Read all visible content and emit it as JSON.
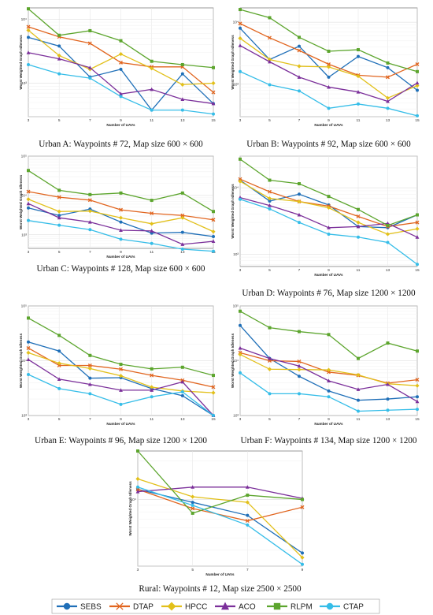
{
  "series_styles": [
    {
      "name": "SEBS",
      "color": "#1f6fb8",
      "marker": "circle"
    },
    {
      "name": "DTAP",
      "color": "#e1651f",
      "marker": "x"
    },
    {
      "name": "HPCC",
      "color": "#e2c01a",
      "marker": "diamond"
    },
    {
      "name": "ACO",
      "color": "#7b2f9a",
      "marker": "triangle"
    },
    {
      "name": "RLPM",
      "color": "#5ca52d",
      "marker": "square"
    },
    {
      "name": "CTAP",
      "color": "#35bde8",
      "marker": "circle"
    }
  ],
  "chart_data": [
    {
      "type": "line",
      "caption": "Urban A: Waypoints # 72, Map size 600 × 600",
      "xlabel": "Number of UAVs",
      "ylabel": "Worst Weighted Graph Idleness",
      "yscale": "log",
      "ylim": [
        300,
        15000
      ],
      "yticks": [
        {
          "v": 1000,
          "t": "10³"
        },
        {
          "v": 10000,
          "t": "10⁴"
        }
      ],
      "x": [
        3,
        5,
        7,
        9,
        11,
        13,
        15
      ],
      "series": [
        {
          "name": "SEBS",
          "values": [
            5200,
            3800,
            1250,
            1650,
            380,
            1400,
            480
          ]
        },
        {
          "name": "DTAP",
          "values": [
            7600,
            5300,
            4200,
            2100,
            1800,
            1800,
            720
          ]
        },
        {
          "name": "HPCC",
          "values": [
            6700,
            2700,
            1650,
            2850,
            1700,
            950,
            1000
          ]
        },
        {
          "name": "ACO",
          "values": [
            3000,
            2400,
            1750,
            680,
            800,
            560,
            480
          ]
        },
        {
          "name": "RLPM",
          "values": [
            14500,
            5600,
            6600,
            4600,
            2200,
            1950,
            1750
          ]
        },
        {
          "name": "CTAP",
          "values": [
            1950,
            1400,
            1200,
            620,
            380,
            380,
            330
          ]
        }
      ]
    },
    {
      "type": "line",
      "caption": "Urban B: Waypoints # 92, Map size 600 × 600",
      "xlabel": "Number of UAVs",
      "ylabel": "Worst Weighted Graph Idleness",
      "yscale": "log",
      "ylim": [
        300,
        17000
      ],
      "yticks": [
        {
          "v": 1000,
          "t": "10³"
        },
        {
          "v": 10000,
          "t": "10⁴"
        }
      ],
      "x": [
        3,
        5,
        7,
        9,
        11,
        13,
        15
      ],
      "series": [
        {
          "name": "SEBS",
          "values": [
            8000,
            2500,
            4100,
            1300,
            2800,
            1850,
            800
          ]
        },
        {
          "name": "DTAP",
          "values": [
            9500,
            5600,
            3500,
            2100,
            1400,
            1300,
            2100
          ]
        },
        {
          "name": "HPCC",
          "values": [
            5500,
            2500,
            1950,
            1900,
            1350,
            600,
            950
          ]
        },
        {
          "name": "ACO",
          "values": [
            4200,
            2300,
            1300,
            900,
            750,
            530,
            1050
          ]
        },
        {
          "name": "RLPM",
          "values": [
            16000,
            11800,
            5700,
            3400,
            3600,
            2200,
            1600
          ]
        },
        {
          "name": "CTAP",
          "values": [
            1600,
            980,
            780,
            410,
            480,
            410,
            310
          ]
        }
      ]
    },
    {
      "type": "line",
      "caption": "Urban C: Waypoints # 128, Map size 600 × 600",
      "xlabel": "Number of UAVs",
      "ylabel": "Worst Weighted Graph Idleness",
      "yscale": "log",
      "ylim": [
        450,
        100000
      ],
      "yticks": [
        {
          "v": 1000,
          "t": "10³"
        },
        {
          "v": 10000,
          "t": "10⁴"
        },
        {
          "v": 100000,
          "t": "10⁵"
        }
      ],
      "x": [
        3,
        5,
        7,
        9,
        11,
        13,
        15
      ],
      "series": [
        {
          "name": "SEBS",
          "values": [
            4800,
            3100,
            4500,
            2100,
            1100,
            1150,
            900
          ]
        },
        {
          "name": "DTAP",
          "values": [
            12500,
            9000,
            7600,
            4300,
            3500,
            3100,
            2400
          ]
        },
        {
          "name": "HPCC",
          "values": [
            8000,
            3900,
            4000,
            2700,
            1900,
            2700,
            1200
          ]
        },
        {
          "name": "ACO",
          "values": [
            6200,
            2700,
            2100,
            1300,
            1250,
            570,
            680
          ]
        },
        {
          "name": "RLPM",
          "values": [
            43000,
            13500,
            10500,
            11500,
            7500,
            11500,
            3900
          ]
        },
        {
          "name": "CTAP",
          "values": [
            2300,
            1750,
            1350,
            770,
            600,
            430,
            380
          ]
        }
      ]
    },
    {
      "type": "line",
      "caption": "Urban D: Waypoints # 76, Map size 1200 × 1200",
      "xlabel": "Number of UAVs",
      "ylabel": "Worst Weighted Graph Idleness",
      "yscale": "log",
      "ylim": [
        650,
        30000
      ],
      "yticks": [
        {
          "v": 1000,
          "t": "10³"
        },
        {
          "v": 10000,
          "t": "10⁴"
        }
      ],
      "x": [
        3,
        5,
        7,
        9,
        11,
        13,
        15
      ],
      "series": [
        {
          "name": "SEBS",
          "values": [
            13000,
            6300,
            8000,
            5500,
            2600,
            2500,
            3900
          ]
        },
        {
          "name": "DTAP",
          "values": [
            13500,
            8700,
            6200,
            5300,
            3700,
            2600,
            3000
          ]
        },
        {
          "name": "HPCC",
          "values": [
            12500,
            6900,
            6200,
            5000,
            3000,
            2000,
            2400
          ]
        },
        {
          "name": "ACO",
          "values": [
            7100,
            5400,
            3900,
            2500,
            2600,
            2900,
            1800
          ]
        },
        {
          "name": "RLPM",
          "values": [
            27000,
            13000,
            11500,
            7400,
            4700,
            2700,
            3900
          ]
        },
        {
          "name": "CTAP",
          "values": [
            6700,
            4800,
            3000,
            2000,
            1800,
            1500,
            700
          ]
        }
      ]
    },
    {
      "type": "line",
      "caption": "Urban E: Waypoints # 96, Map size 1200 × 1200",
      "xlabel": "Number of UAVs",
      "ylabel": "Worst Weighted Graph Idleness",
      "yscale": "log",
      "ylim": [
        1000,
        100000
      ],
      "yticks": [
        {
          "v": 1000,
          "t": "10³"
        },
        {
          "v": 10000,
          "t": "10⁴"
        },
        {
          "v": 100000,
          "t": "10⁵"
        }
      ],
      "x": [
        3,
        5,
        7,
        9,
        11,
        13,
        15
      ],
      "series": [
        {
          "name": "SEBS",
          "values": [
            22000,
            15000,
            4800,
            4900,
            3100,
            2300,
            1000
          ]
        },
        {
          "name": "DTAP",
          "values": [
            17000,
            8200,
            8200,
            7000,
            5400,
            4400,
            3300
          ]
        },
        {
          "name": "HPCC",
          "values": [
            14000,
            9000,
            7200,
            5300,
            3300,
            2800,
            2600
          ]
        },
        {
          "name": "ACO",
          "values": [
            10500,
            4600,
            3700,
            2900,
            2900,
            4100,
            1000
          ]
        },
        {
          "name": "RLPM",
          "values": [
            60000,
            29000,
            12500,
            8600,
            7100,
            7600,
            5400
          ]
        },
        {
          "name": "CTAP",
          "values": [
            5600,
            3100,
            2500,
            1600,
            2200,
            2700,
            1000
          ]
        }
      ]
    },
    {
      "type": "line",
      "caption": "Urban F: Waypoints # 134, Map size 1200 × 1200",
      "xlabel": "Number of UAVs",
      "ylabel": "Worst Weighted Graph Idleness",
      "yscale": "log",
      "ylim": [
        1000,
        100000
      ],
      "yticks": [
        {
          "v": 1000,
          "t": "10³"
        },
        {
          "v": 10000,
          "t": "10⁴"
        },
        {
          "v": 100000,
          "t": "10⁵"
        }
      ],
      "x": [
        3,
        5,
        7,
        9,
        11,
        13,
        15
      ],
      "series": [
        {
          "name": "SEBS",
          "values": [
            44000,
            11000,
            5200,
            2800,
            1900,
            2000,
            2200
          ]
        },
        {
          "name": "DTAP",
          "values": [
            14000,
            10000,
            9700,
            6200,
            5400,
            3900,
            4500
          ]
        },
        {
          "name": "HPCC",
          "values": [
            13000,
            7000,
            6900,
            6800,
            5500,
            3800,
            3500
          ]
        },
        {
          "name": "ACO",
          "values": [
            17000,
            11000,
            8000,
            4300,
            3000,
            3700,
            1800
          ]
        },
        {
          "name": "RLPM",
          "values": [
            80000,
            40000,
            34000,
            30000,
            11000,
            21000,
            15000
          ]
        },
        {
          "name": "CTAP",
          "values": [
            6000,
            2500,
            2500,
            2200,
            1200,
            1250,
            1300
          ]
        }
      ]
    },
    {
      "type": "line",
      "caption": "Rural: Waypoints # 12, Map size 2500 × 2500",
      "xlabel": "Number of UAVs",
      "ylabel": "Worst Weighted Graph Idleness",
      "yscale": "log",
      "ylim": [
        3000,
        24000
      ],
      "yticks": [
        {
          "v": 10000,
          "t": "10⁴"
        }
      ],
      "x": [
        3,
        5,
        7,
        9
      ],
      "series": [
        {
          "name": "SEBS",
          "values": [
            12000,
            9500,
            7500,
            3800
          ]
        },
        {
          "name": "DTAP",
          "values": [
            12000,
            8500,
            6800,
            8700
          ]
        },
        {
          "name": "HPCC",
          "values": [
            14500,
            10500,
            9500,
            3500
          ]
        },
        {
          "name": "ACO",
          "values": [
            11500,
            12500,
            12500,
            10200
          ]
        },
        {
          "name": "RLPM",
          "values": [
            24000,
            7800,
            10800,
            10000
          ]
        },
        {
          "name": "CTAP",
          "values": [
            12500,
            9000,
            6300,
            3100
          ]
        }
      ]
    }
  ]
}
